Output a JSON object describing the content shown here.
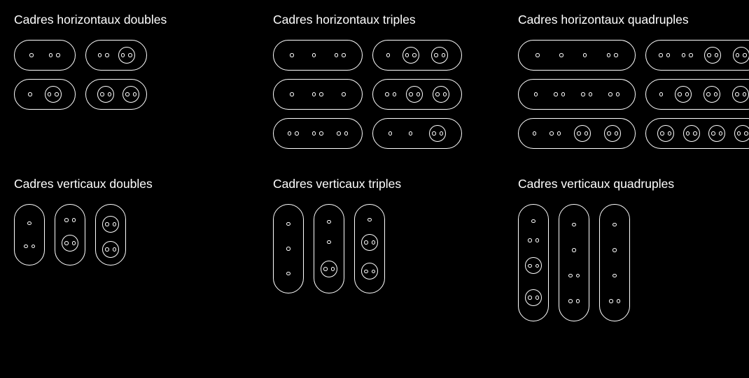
{
  "background_color": "#000000",
  "stroke_color": "#ffffff",
  "text_color": "#ffffff",
  "font_size": 15,
  "stroke_width": 1.5,
  "slot_types": {
    "single": "single hollow dot (switch)",
    "double": "two small hollow dots (pair)",
    "socket": "circle containing two dots (outlet)"
  },
  "sections": [
    {
      "id": "h2",
      "title": "Cadres horizontaux doubles",
      "orientation": "horizontal",
      "gang": 2,
      "variants": [
        [
          "single",
          "double"
        ],
        [
          "double",
          "socket"
        ],
        [
          "single",
          "socket"
        ],
        [
          "socket",
          "socket"
        ]
      ]
    },
    {
      "id": "h3",
      "title": "Cadres horizontaux triples",
      "orientation": "horizontal",
      "gang": 3,
      "variants": [
        [
          "single",
          "single",
          "double"
        ],
        [
          "single",
          "socket",
          "socket"
        ],
        [
          "single",
          "double",
          "single"
        ],
        [
          "double",
          "socket",
          "socket"
        ],
        [
          "double",
          "double",
          "double"
        ],
        [
          "single",
          "single",
          "socket"
        ]
      ]
    },
    {
      "id": "h4",
      "title": "Cadres horizontaux quadruples",
      "orientation": "horizontal",
      "gang": 4,
      "variants": [
        [
          "single",
          "single",
          "single",
          "double"
        ],
        [
          "double",
          "double",
          "socket",
          "socket"
        ],
        [
          "single",
          "double",
          "double",
          "double"
        ],
        [
          "single",
          "socket",
          "socket",
          "socket"
        ],
        [
          "single",
          "double",
          "socket",
          "socket"
        ],
        [
          "socket",
          "socket",
          "socket",
          "socket"
        ]
      ]
    },
    {
      "id": "v2",
      "title": "Cadres verticaux doubles",
      "orientation": "vertical",
      "gang": 2,
      "variants": [
        [
          "single",
          "double"
        ],
        [
          "double",
          "socket"
        ],
        [
          "socket",
          "socket"
        ]
      ]
    },
    {
      "id": "v3",
      "title": "Cadres verticaux triples",
      "orientation": "vertical",
      "gang": 3,
      "variants": [
        [
          "single",
          "single",
          "single"
        ],
        [
          "single",
          "single",
          "socket"
        ],
        [
          "single",
          "socket",
          "socket"
        ]
      ]
    },
    {
      "id": "v4",
      "title": "Cadres verticaux quadruples",
      "orientation": "vertical",
      "gang": 4,
      "variants": [
        [
          "single",
          "double",
          "socket",
          "socket"
        ],
        [
          "single",
          "single",
          "double",
          "double"
        ],
        [
          "single",
          "single",
          "single",
          "double"
        ]
      ]
    }
  ]
}
